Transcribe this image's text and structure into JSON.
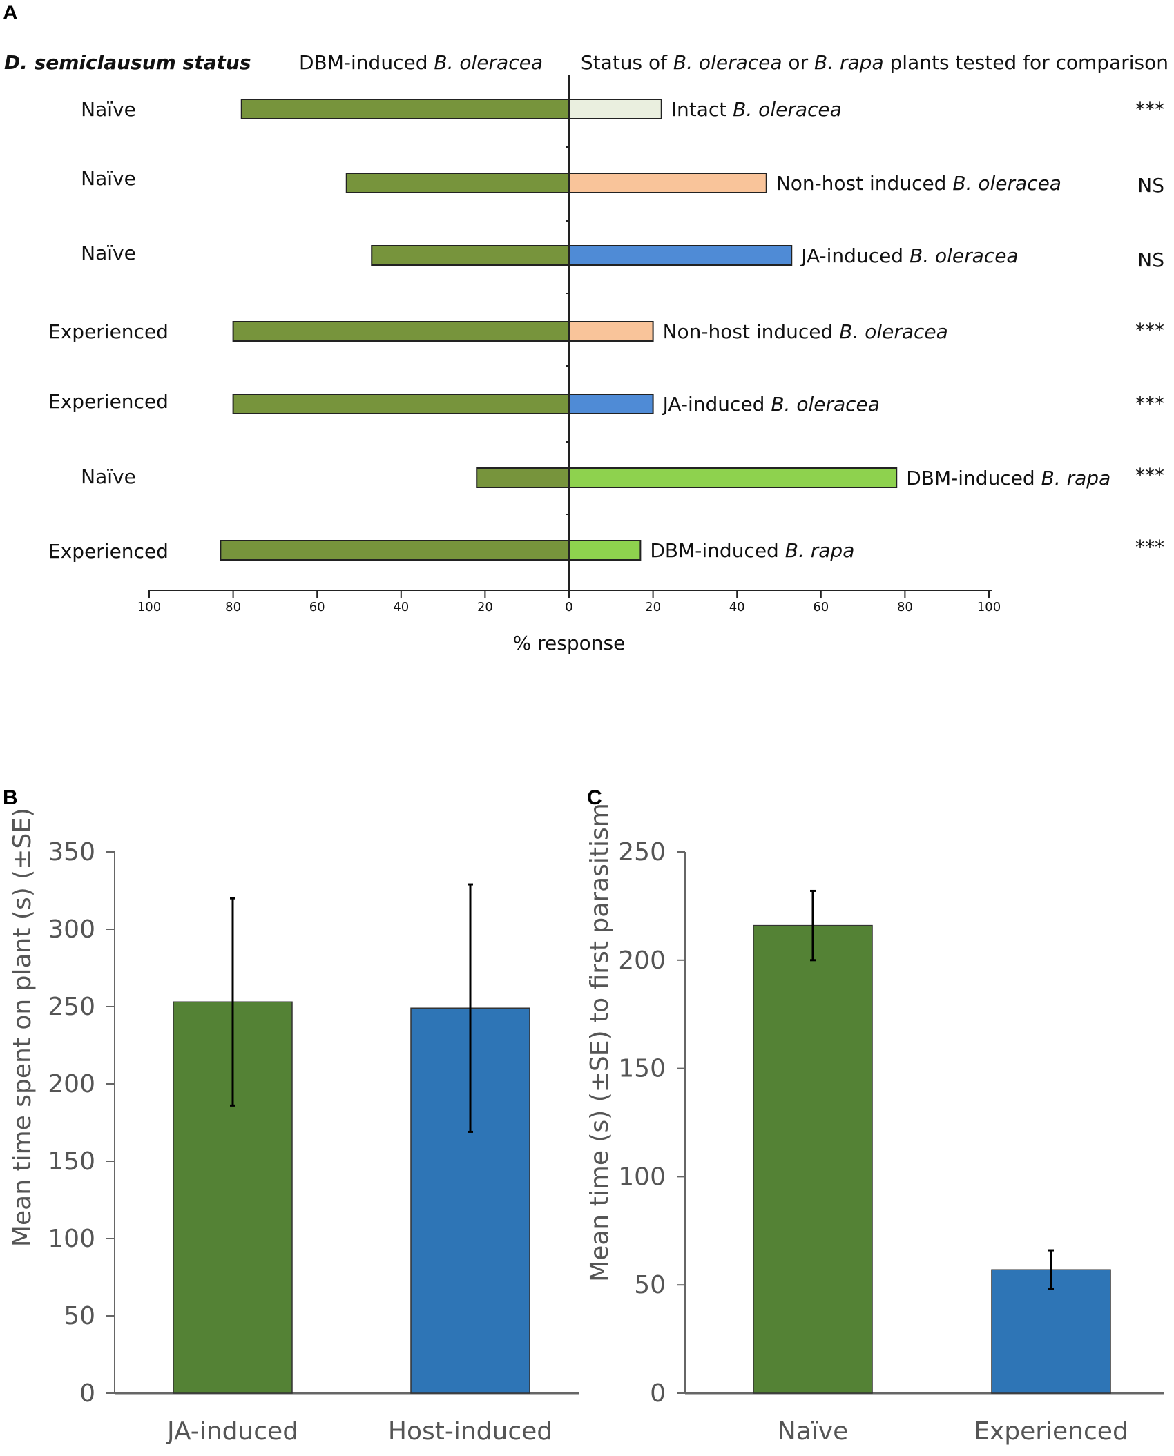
{
  "chart_data": [
    {
      "panel": "A",
      "type": "bar",
      "orientation": "diverging-horizontal",
      "header": {
        "status_col": "D. semiclausum status",
        "left_pre": "DBM-induced ",
        "left_it": "B. oleracea",
        "right_p1": "Status of ",
        "right_i1": "B. oleracea",
        "right_p2": " or ",
        "right_i2": "B. rapa",
        "right_p3": " plants tested for comparison"
      },
      "xlabel": "% response",
      "ticks": [
        "100",
        "80",
        "60",
        "40",
        "20",
        "0",
        "20",
        "40",
        "60",
        "80",
        "100"
      ],
      "rows": [
        {
          "status": "Naïve",
          "left": 78,
          "right": 22,
          "cmp_pre": "Intact ",
          "cmp_it": "B. oleracea",
          "sig": "***",
          "color": "#eaefdf"
        },
        {
          "status": "Naïve",
          "left": 53,
          "right": 47,
          "cmp_pre": "Non-host induced ",
          "cmp_it": "B. oleracea",
          "sig": "NS",
          "color": "#f9c49a"
        },
        {
          "status": "Naïve",
          "left": 47,
          "right": 53,
          "cmp_pre": "JA-induced ",
          "cmp_it": "B. oleracea",
          "sig": "NS",
          "color": "#4f8bd6"
        },
        {
          "status": "Experienced",
          "left": 80,
          "right": 20,
          "cmp_pre": "Non-host induced ",
          "cmp_it": "B. oleracea",
          "sig": "***",
          "color": "#f9c49a"
        },
        {
          "status": "Experienced",
          "left": 80,
          "right": 20,
          "cmp_pre": "JA-induced ",
          "cmp_it": "B. oleracea",
          "sig": "***",
          "color": "#4f8bd6"
        },
        {
          "status": "Naïve",
          "left": 22,
          "right": 78,
          "cmp_pre": "DBM-induced  ",
          "cmp_it": "B. rapa",
          "sig": "***",
          "color": "#8ed24e"
        },
        {
          "status": "Experienced",
          "left": 83,
          "right": 17,
          "cmp_pre": "DBM-induced  ",
          "cmp_it": "B. rapa",
          "sig": "***",
          "color": "#8ed24e"
        }
      ],
      "left_color": "#77943c"
    },
    {
      "panel": "B",
      "type": "bar",
      "categories": [
        "JA-induced",
        "Host-induced"
      ],
      "values": [
        253,
        249
      ],
      "errors": [
        67,
        80
      ],
      "colors": [
        "#548235",
        "#2e75b6"
      ],
      "ylabel": "Mean time spent on plant (s) (±SE)",
      "ylim": [
        0,
        350
      ],
      "yticks": [
        0,
        50,
        100,
        150,
        200,
        250,
        300,
        350
      ]
    },
    {
      "panel": "C",
      "type": "bar",
      "categories": [
        "Naïve",
        "Experienced"
      ],
      "values": [
        216,
        57
      ],
      "errors": [
        16,
        9
      ],
      "colors": [
        "#548235",
        "#2e75b6"
      ],
      "ylabel": "Mean time (s) (±SE) to first parasitism",
      "ylim": [
        0,
        250
      ],
      "yticks": [
        0,
        50,
        100,
        150,
        200,
        250
      ]
    }
  ]
}
